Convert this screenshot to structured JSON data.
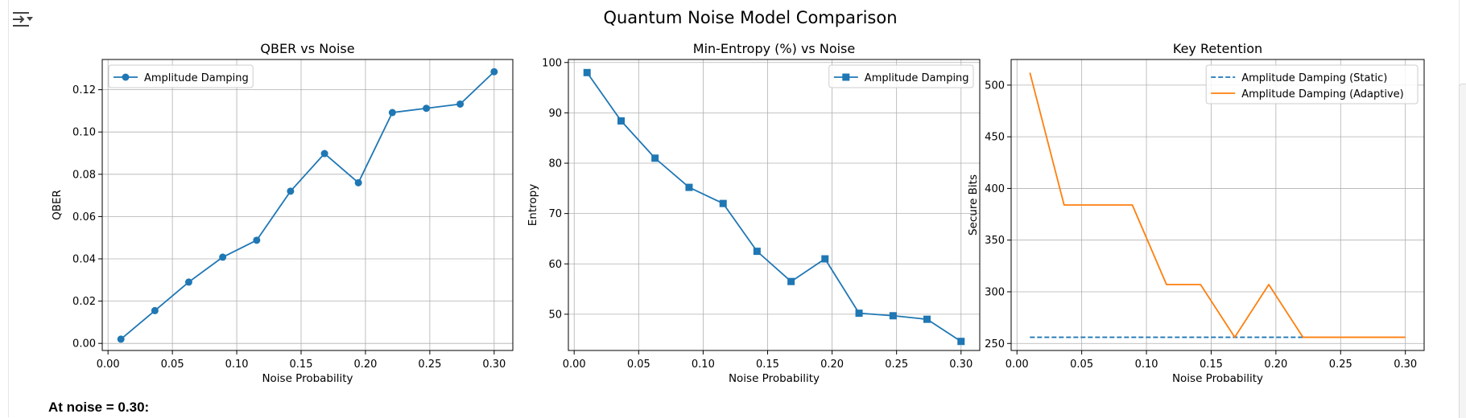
{
  "figure_title": "Quantum Noise Model Comparison",
  "footer_text": "At noise = 0.30:",
  "icons": {
    "cell_toolbar": "collapse-output-icon"
  },
  "colors": {
    "blue": "#1f77b4",
    "orange": "#ff7f0e",
    "grid": "#b0b0b0"
  },
  "chart_data": [
    {
      "type": "line",
      "title": "QBER vs Noise",
      "xlabel": "Noise Probability",
      "ylabel": "QBER",
      "xlim": [
        -0.0045,
        0.3145
      ],
      "ylim": [
        -0.00335,
        0.1343
      ],
      "xticks": [
        0.0,
        0.05,
        0.1,
        0.15,
        0.2,
        0.25,
        0.3
      ],
      "xtick_labels": [
        "0.00",
        "0.05",
        "0.10",
        "0.15",
        "0.20",
        "0.25",
        "0.30"
      ],
      "yticks": [
        0.0,
        0.02,
        0.04,
        0.06,
        0.08,
        0.1,
        0.12
      ],
      "ytick_labels": [
        "0.00",
        "0.02",
        "0.04",
        "0.06",
        "0.08",
        "0.10",
        "0.12"
      ],
      "grid": true,
      "legend_position": "upper-left",
      "series": [
        {
          "name": "Amplitude Damping",
          "color": "#1f77b4",
          "marker": "circle",
          "linestyle": "solid",
          "x": [
            0.01,
            0.0364,
            0.0627,
            0.0891,
            0.1155,
            0.1418,
            0.1682,
            0.1945,
            0.2209,
            0.2473,
            0.2736,
            0.3
          ],
          "y": [
            0.002,
            0.0155,
            0.029,
            0.0408,
            0.0488,
            0.072,
            0.0898,
            0.076,
            0.1092,
            0.1112,
            0.1132,
            0.1285
          ]
        }
      ]
    },
    {
      "type": "line",
      "title": "Min-Entropy (%) vs Noise",
      "xlabel": "Noise Probability",
      "ylabel": "Entropy",
      "xlim": [
        -0.0045,
        0.3145
      ],
      "ylim": [
        42.8,
        100.6
      ],
      "xticks": [
        0.0,
        0.05,
        0.1,
        0.15,
        0.2,
        0.25,
        0.3
      ],
      "xtick_labels": [
        "0.00",
        "0.05",
        "0.10",
        "0.15",
        "0.20",
        "0.25",
        "0.30"
      ],
      "yticks": [
        50,
        60,
        70,
        80,
        90,
        100
      ],
      "ytick_labels": [
        "50",
        "60",
        "70",
        "80",
        "90",
        "100"
      ],
      "grid": true,
      "legend_position": "upper-right",
      "series": [
        {
          "name": "Amplitude Damping",
          "color": "#1f77b4",
          "marker": "square",
          "linestyle": "solid",
          "x": [
            0.01,
            0.0364,
            0.0627,
            0.0891,
            0.1155,
            0.1418,
            0.1682,
            0.1945,
            0.2209,
            0.2473,
            0.2736,
            0.3
          ],
          "y": [
            98.0,
            88.4,
            81.0,
            75.2,
            72.0,
            62.5,
            56.5,
            61.0,
            50.2,
            49.7,
            49.0,
            44.6
          ]
        }
      ]
    },
    {
      "type": "line",
      "title": "Key Retention",
      "xlabel": "Noise Probability",
      "ylabel": "Secure Bits",
      "xlim": [
        -0.0045,
        0.3145
      ],
      "ylim": [
        243.2,
        524.8
      ],
      "xticks": [
        0.0,
        0.05,
        0.1,
        0.15,
        0.2,
        0.25,
        0.3
      ],
      "xtick_labels": [
        "0.00",
        "0.05",
        "0.10",
        "0.15",
        "0.20",
        "0.25",
        "0.30"
      ],
      "yticks": [
        250,
        300,
        350,
        400,
        450,
        500
      ],
      "ytick_labels": [
        "250",
        "300",
        "350",
        "400",
        "450",
        "500"
      ],
      "grid": true,
      "legend_position": "upper-right",
      "series": [
        {
          "name": "Amplitude Damping (Static)",
          "color": "#1f77b4",
          "marker": "none",
          "linestyle": "dashed",
          "x": [
            0.01,
            0.0364,
            0.0627,
            0.0891,
            0.1155,
            0.1418,
            0.1682,
            0.1945,
            0.2209
          ],
          "y": [
            256,
            256,
            256,
            256,
            256,
            256,
            256,
            256,
            256
          ]
        },
        {
          "name": "Amplitude Damping (Adaptive)",
          "color": "#ff7f0e",
          "marker": "none",
          "linestyle": "solid",
          "x": [
            0.01,
            0.0364,
            0.0627,
            0.0891,
            0.1155,
            0.1418,
            0.1682,
            0.1945,
            0.2209,
            0.2473,
            0.2736,
            0.3
          ],
          "y": [
            512,
            384,
            384,
            384,
            307,
            307,
            256,
            307,
            256,
            256,
            256,
            256
          ]
        }
      ]
    }
  ]
}
